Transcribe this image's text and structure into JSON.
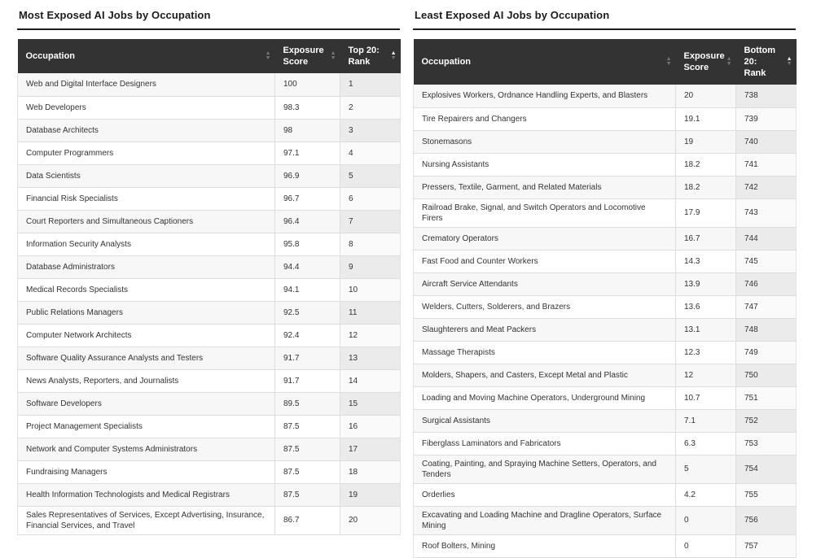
{
  "colors": {
    "header_bg": "#333333",
    "header_text": "#ffffff",
    "title_text": "#1c1c1c",
    "row_stripe": "#f7f7f7",
    "sorted_column_stripe": "#ebebeb",
    "border": "#dddddd",
    "body_text": "#333333"
  },
  "icons": {
    "sort_up": "▲",
    "sort_down": "▼"
  },
  "tables": [
    {
      "title": "Most Exposed AI Jobs by Occupation",
      "columns": [
        {
          "label": "Occupation",
          "sort": "none"
        },
        {
          "label": "Exposure Score",
          "sort": "none"
        },
        {
          "label": "Top 20: Rank",
          "sort": "asc"
        }
      ],
      "rows": [
        {
          "occupation": "Web and Digital Interface Designers",
          "score": "100",
          "rank": "1"
        },
        {
          "occupation": "Web Developers",
          "score": "98.3",
          "rank": "2"
        },
        {
          "occupation": "Database Architects",
          "score": "98",
          "rank": "3"
        },
        {
          "occupation": "Computer Programmers",
          "score": "97.1",
          "rank": "4"
        },
        {
          "occupation": "Data Scientists",
          "score": "96.9",
          "rank": "5"
        },
        {
          "occupation": "Financial Risk Specialists",
          "score": "96.7",
          "rank": "6"
        },
        {
          "occupation": "Court Reporters and Simultaneous Captioners",
          "score": "96.4",
          "rank": "7"
        },
        {
          "occupation": "Information Security Analysts",
          "score": "95.8",
          "rank": "8"
        },
        {
          "occupation": "Database Administrators",
          "score": "94.4",
          "rank": "9"
        },
        {
          "occupation": "Medical Records Specialists",
          "score": "94.1",
          "rank": "10"
        },
        {
          "occupation": "Public Relations Managers",
          "score": "92.5",
          "rank": "11"
        },
        {
          "occupation": "Computer Network Architects",
          "score": "92.4",
          "rank": "12"
        },
        {
          "occupation": "Software Quality Assurance Analysts and Testers",
          "score": "91.7",
          "rank": "13"
        },
        {
          "occupation": "News Analysts, Reporters, and Journalists",
          "score": "91.7",
          "rank": "14"
        },
        {
          "occupation": "Software Developers",
          "score": "89.5",
          "rank": "15"
        },
        {
          "occupation": "Project Management Specialists",
          "score": "87.5",
          "rank": "16"
        },
        {
          "occupation": "Network and Computer Systems Administrators",
          "score": "87.5",
          "rank": "17"
        },
        {
          "occupation": "Fundraising Managers",
          "score": "87.5",
          "rank": "18"
        },
        {
          "occupation": "Health Information Technologists and Medical Registrars",
          "score": "87.5",
          "rank": "19"
        },
        {
          "occupation": "Sales Representatives of Services, Except Advertising, Insurance, Financial Services, and Travel",
          "score": "86.7",
          "rank": "20"
        }
      ]
    },
    {
      "title": "Least Exposed AI Jobs by Occupation",
      "columns": [
        {
          "label": "Occupation",
          "sort": "none"
        },
        {
          "label": "Exposure Score",
          "sort": "none"
        },
        {
          "label": "Bottom 20: Rank",
          "sort": "asc"
        }
      ],
      "rows": [
        {
          "occupation": "Explosives Workers, Ordnance Handling Experts, and Blasters",
          "score": "20",
          "rank": "738"
        },
        {
          "occupation": "Tire Repairers and Changers",
          "score": "19.1",
          "rank": "739"
        },
        {
          "occupation": "Stonemasons",
          "score": "19",
          "rank": "740"
        },
        {
          "occupation": "Nursing Assistants",
          "score": "18.2",
          "rank": "741"
        },
        {
          "occupation": "Pressers, Textile, Garment, and Related Materials",
          "score": "18.2",
          "rank": "742"
        },
        {
          "occupation": "Railroad Brake, Signal, and Switch Operators and Locomotive Firers",
          "score": "17.9",
          "rank": "743"
        },
        {
          "occupation": "Crematory Operators",
          "score": "16.7",
          "rank": "744"
        },
        {
          "occupation": "Fast Food and Counter Workers",
          "score": "14.3",
          "rank": "745"
        },
        {
          "occupation": "Aircraft Service Attendants",
          "score": "13.9",
          "rank": "746"
        },
        {
          "occupation": "Welders, Cutters, Solderers, and Brazers",
          "score": "13.6",
          "rank": "747"
        },
        {
          "occupation": "Slaughterers and Meat Packers",
          "score": "13.1",
          "rank": "748"
        },
        {
          "occupation": "Massage Therapists",
          "score": "12.3",
          "rank": "749"
        },
        {
          "occupation": "Molders, Shapers, and Casters, Except Metal and Plastic",
          "score": "12",
          "rank": "750"
        },
        {
          "occupation": "Loading and Moving Machine Operators, Underground Mining",
          "score": "10.7",
          "rank": "751"
        },
        {
          "occupation": "Surgical Assistants",
          "score": "7.1",
          "rank": "752"
        },
        {
          "occupation": "Fiberglass Laminators and Fabricators",
          "score": "6.3",
          "rank": "753"
        },
        {
          "occupation": "Coating, Painting, and Spraying Machine Setters, Operators, and Tenders",
          "score": "5",
          "rank": "754"
        },
        {
          "occupation": "Orderlies",
          "score": "4.2",
          "rank": "755"
        },
        {
          "occupation": "Excavating and Loading Machine and Dragline Operators, Surface Mining",
          "score": "0",
          "rank": "756"
        },
        {
          "occupation": "Roof Bolters, Mining",
          "score": "0",
          "rank": "757"
        }
      ]
    }
  ]
}
